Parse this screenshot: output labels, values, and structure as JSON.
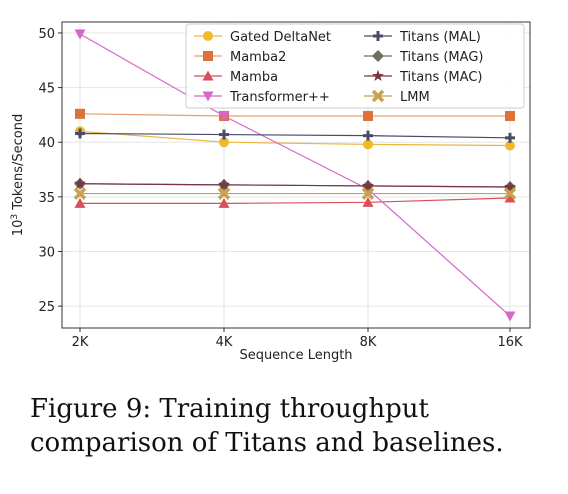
{
  "chart_data": {
    "type": "line",
    "xlabel": "Sequence Length",
    "ylabel_prefix": "10",
    "ylabel_exp": "3",
    "ylabel_suffix": " Tokens/Second",
    "categories": [
      "2K",
      "4K",
      "8K",
      "16K"
    ],
    "yticks": [
      25,
      30,
      35,
      40,
      45,
      50
    ],
    "ylim": [
      23,
      51
    ],
    "grid": true,
    "legend_position": "top-right",
    "series": [
      {
        "name": "Gated DeltaNet",
        "color": "#f0b92a",
        "line": "#e8b840",
        "marker": "circle",
        "values": [
          41.0,
          40.0,
          39.8,
          39.7
        ]
      },
      {
        "name": "Mamba2",
        "color": "#d9733a",
        "line": "#e2a070",
        "marker": "square",
        "values": [
          42.6,
          42.4,
          42.4,
          42.4
        ]
      },
      {
        "name": "Mamba",
        "color": "#d8505a",
        "line": "#d8505a",
        "marker": "triangle-up",
        "values": [
          34.4,
          34.4,
          34.5,
          34.9
        ]
      },
      {
        "name": "Transformer++",
        "color": "#d866c8",
        "line": "#d866c8",
        "marker": "triangle-down",
        "values": [
          49.9,
          42.4,
          35.7,
          24.1
        ]
      },
      {
        "name": "Titans (MAL)",
        "color": "#4a4a6a",
        "line": "#4a4a6a",
        "marker": "plus",
        "values": [
          40.8,
          40.7,
          40.6,
          40.4
        ]
      },
      {
        "name": "Titans (MAG)",
        "color": "#6e6e60",
        "line": "#6e6e60",
        "marker": "diamond",
        "values": [
          36.2,
          36.1,
          36.0,
          35.9
        ]
      },
      {
        "name": "Titans (MAC)",
        "color": "#7a3640",
        "line": "#7a3640",
        "marker": "star",
        "values": [
          36.2,
          36.1,
          36.0,
          35.9
        ]
      },
      {
        "name": "LMM",
        "color": "#c8a050",
        "line": "#c8a050",
        "marker": "x",
        "values": [
          35.3,
          35.3,
          35.3,
          35.3
        ]
      }
    ]
  },
  "caption": "Figure 9: Training throughput comparison of Titans and baselines."
}
